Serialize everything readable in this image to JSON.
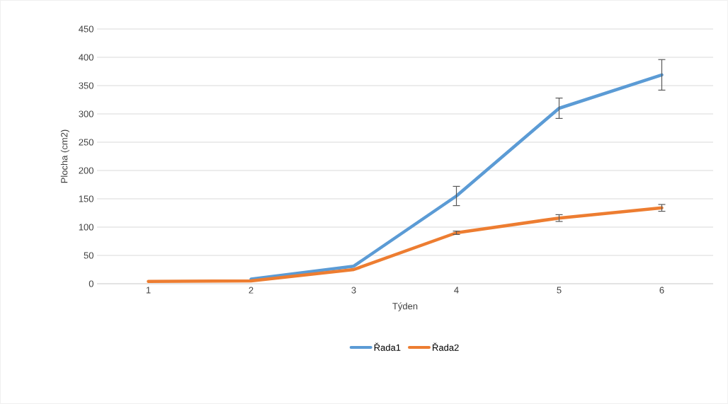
{
  "chart_data": {
    "type": "line",
    "xlabel": "Týden",
    "ylabel": "Plocha (cm2)",
    "categories": [
      "1",
      "2",
      "3",
      "4",
      "5",
      "6"
    ],
    "series": [
      {
        "name": "Řada1",
        "color": "#5b9bd5",
        "values": [
          null,
          8,
          31,
          155,
          310,
          369
        ],
        "errors": [
          null,
          null,
          null,
          17,
          18,
          27
        ]
      },
      {
        "name": "Řada2",
        "color": "#ed7d31",
        "values": [
          4,
          5,
          25,
          90,
          116,
          134
        ],
        "errors": [
          null,
          null,
          null,
          3,
          6,
          6
        ]
      }
    ],
    "ylim": [
      0,
      450
    ],
    "yticks": [
      0,
      50,
      100,
      150,
      200,
      250,
      300,
      350,
      400,
      450
    ],
    "grid": "y",
    "legend": "bottom"
  }
}
